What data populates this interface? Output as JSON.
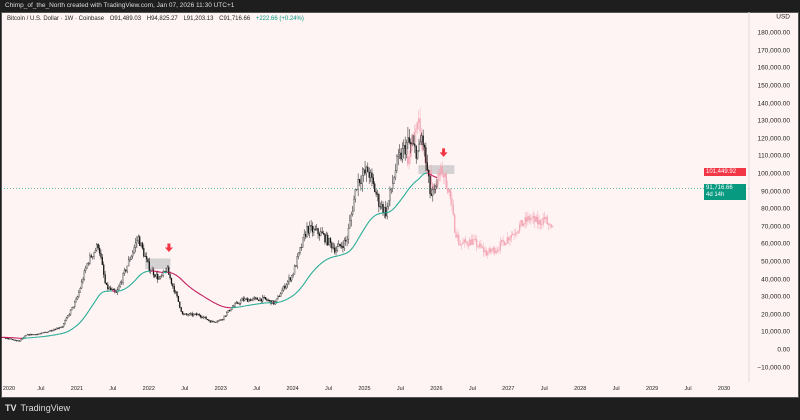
{
  "header": {
    "credit": "Chimp_of_the_North created with TradingView.com, Jan 07, 2026 11:30 UTC+1"
  },
  "legend": {
    "symbol": "Bitcoin / U.S. Dollar · 1W · Coinbase",
    "open": "O91,489.03",
    "high": "H94,825.27",
    "low": "L91,203.13",
    "close": "C91,716.66",
    "change": "+222.66 (+0.24%)"
  },
  "price_axis": {
    "currency": "USD",
    "labels": [
      "180,000.00",
      "170,000.00",
      "160,000.00",
      "150,000.00",
      "140,000.00",
      "130,000.00",
      "120,000.00",
      "110,000.00",
      "100,000.00",
      "90,000.00",
      "80,000.00",
      "70,000.00",
      "60,000.00",
      "50,000.00",
      "40,000.00",
      "30,000.00",
      "20,000.00",
      "10,000.00",
      "0.00",
      "−10,000.00"
    ]
  },
  "price_tags": {
    "ema_value": "101,449.92",
    "last_price": "91,716.66",
    "countdown": "4d 14h"
  },
  "time_axis": [
    "2020",
    "Jul",
    "2021",
    "Jul",
    "2022",
    "Jul",
    "2023",
    "Jul",
    "2024",
    "Jul",
    "2025",
    "Jul",
    "2026",
    "Jul",
    "2027",
    "Jul",
    "2028",
    "Jul",
    "2029",
    "Jul",
    "2030"
  ],
  "branding": {
    "logo": "TV",
    "name": "TradingView"
  },
  "colors": {
    "up": "#089981",
    "down": "#f23645",
    "candle": "#111111",
    "projection": "#f2a6b4",
    "ema_up": "#22ab94",
    "ema_down": "#c2185b",
    "zone": "#c8c8c8"
  },
  "chart_data": {
    "type": "candlestick",
    "price_path": [
      [
        2019.95,
        7200
      ],
      [
        2020.2,
        5000
      ],
      [
        2020.3,
        8500
      ],
      [
        2020.5,
        9200
      ],
      [
        2020.8,
        13500
      ],
      [
        2021.0,
        29000
      ],
      [
        2021.15,
        50000
      ],
      [
        2021.3,
        60000
      ],
      [
        2021.4,
        36000
      ],
      [
        2021.55,
        32000
      ],
      [
        2021.7,
        48000
      ],
      [
        2021.85,
        64000
      ],
      [
        2022.0,
        47000
      ],
      [
        2022.15,
        40000
      ],
      [
        2022.25,
        46000
      ],
      [
        2022.4,
        29000
      ],
      [
        2022.47,
        20000
      ],
      [
        2022.7,
        20000
      ],
      [
        2022.87,
        16000
      ],
      [
        2023.0,
        17000
      ],
      [
        2023.15,
        24000
      ],
      [
        2023.3,
        28500
      ],
      [
        2023.6,
        29000
      ],
      [
        2023.75,
        26500
      ],
      [
        2023.9,
        37000
      ],
      [
        2024.0,
        43000
      ],
      [
        2024.2,
        69000
      ],
      [
        2024.4,
        66000
      ],
      [
        2024.6,
        57000
      ],
      [
        2024.75,
        62000
      ],
      [
        2024.9,
        96000
      ],
      [
        2025.05,
        102000
      ],
      [
        2025.2,
        84000
      ],
      [
        2025.3,
        78000
      ],
      [
        2025.45,
        106000
      ],
      [
        2025.6,
        118000
      ],
      [
        2025.75,
        112000
      ],
      [
        2025.8,
        122000
      ],
      [
        2025.85,
        108000
      ],
      [
        2025.92,
        87000
      ],
      [
        2026.02,
        91716
      ]
    ],
    "projection_path": [
      [
        2025.6,
        110000
      ],
      [
        2025.75,
        128000
      ],
      [
        2025.85,
        108000
      ],
      [
        2025.95,
        92000
      ],
      [
        2026.08,
        102000
      ],
      [
        2026.18,
        90000
      ],
      [
        2026.25,
        70000
      ],
      [
        2026.32,
        60000
      ],
      [
        2026.5,
        62000
      ],
      [
        2026.7,
        55000
      ],
      [
        2026.85,
        58000
      ],
      [
        2027.0,
        64000
      ],
      [
        2027.15,
        70000
      ],
      [
        2027.3,
        75000
      ],
      [
        2027.42,
        72000
      ],
      [
        2027.5,
        75000
      ],
      [
        2027.6,
        68000
      ]
    ],
    "zones": [
      {
        "from": 2021.95,
        "to": 2022.3,
        "low": 46000,
        "high": 52000
      },
      {
        "from": 2025.75,
        "to": 2026.25,
        "low": 100000,
        "high": 105000
      }
    ],
    "arrows": [
      {
        "t": 2022.28,
        "price": 56000
      },
      {
        "t": 2026.1,
        "price": 110000
      }
    ],
    "ema_period": 50
  }
}
